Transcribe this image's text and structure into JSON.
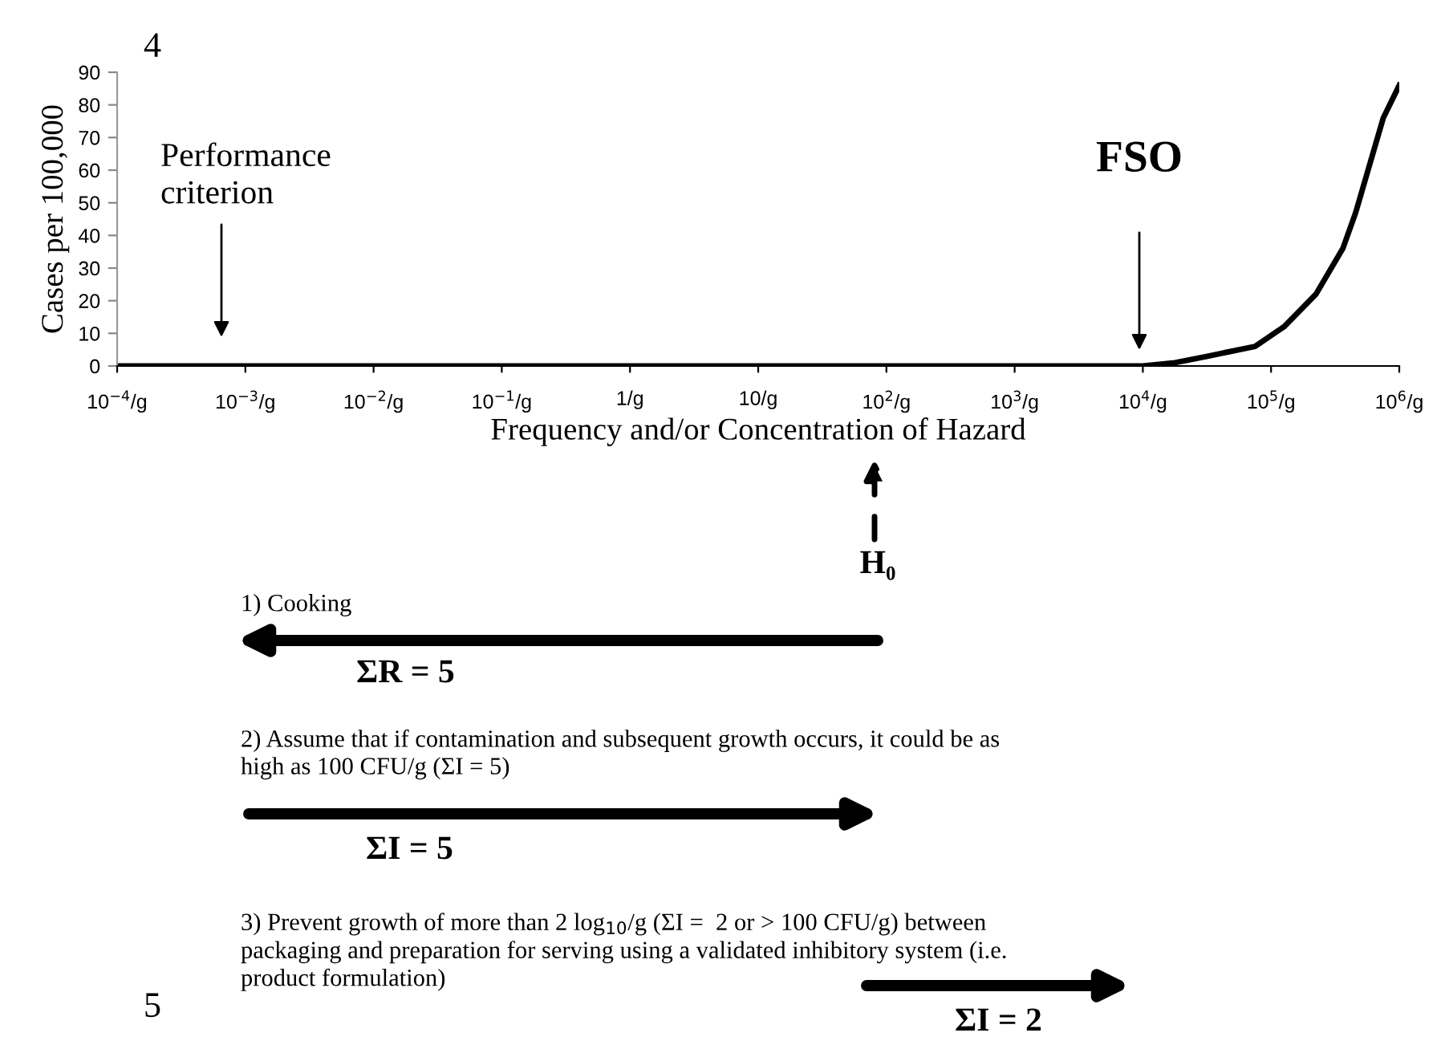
{
  "chart_data": {
    "type": "line",
    "xlabel": "Frequency and/or Concentration of Hazard",
    "ylabel": "Cases per 100,000",
    "log": "x",
    "x": [
      0.0001,
      10000,
      17800,
      32000,
      75000,
      126000,
      224000,
      363000,
      457000,
      750000,
      1000000
    ],
    "series": [
      {
        "color": "#000000",
        "values": [
          0,
          0,
          1,
          3,
          6,
          12,
          22,
          36,
          47,
          76,
          86
        ]
      }
    ],
    "xlim": [
      0.0001,
      1000000
    ],
    "xticks": [
      {
        "value": 0.0001,
        "label": "10$^{−4}$/g"
      },
      {
        "value": 0.001,
        "label": "10$^{−3}$/g"
      },
      {
        "value": 0.01,
        "label": "10$^{−2}$/g"
      },
      {
        "value": 0.1,
        "label": "10$^{−1}$/g"
      },
      {
        "value": 1,
        "label": "1/g"
      },
      {
        "value": 10,
        "label": "10/g"
      },
      {
        "value": 100,
        "label": "10$^{2}$/g"
      },
      {
        "value": 1000,
        "label": "10$^{3}$/g"
      },
      {
        "value": 10000,
        "label": "10$^{4}$/g"
      },
      {
        "value": 100000,
        "label": "10$^{5}$/g"
      },
      {
        "value": 1000000,
        "label": "10$^{6}$/g"
      }
    ],
    "ylim": [
      0,
      90
    ],
    "yticks": [
      0,
      10,
      20,
      30,
      40,
      50,
      60,
      70,
      80,
      90
    ],
    "grid": false,
    "marker": "none",
    "line_style": "solid",
    "annotations": [
      "Performance\ncriterion",
      "FSO",
      "4",
      "H₀",
      "1) Cooking",
      "ΣR = 5",
      "2) Assume that if contamination and subsequent growth occurs, it could be as\nhigh as 100 CFU/g (ΣI = 5)",
      "ΣI = 5",
      "3) Prevent growth of more than 2 log$_{10}$/g (ΣI =  2 or > 100 CFU/g) between\npackaging and preparation for serving using a validated inhibitory system (i.e.\nproduct formulation)",
      "ΣI = 2",
      "5"
    ]
  }
}
